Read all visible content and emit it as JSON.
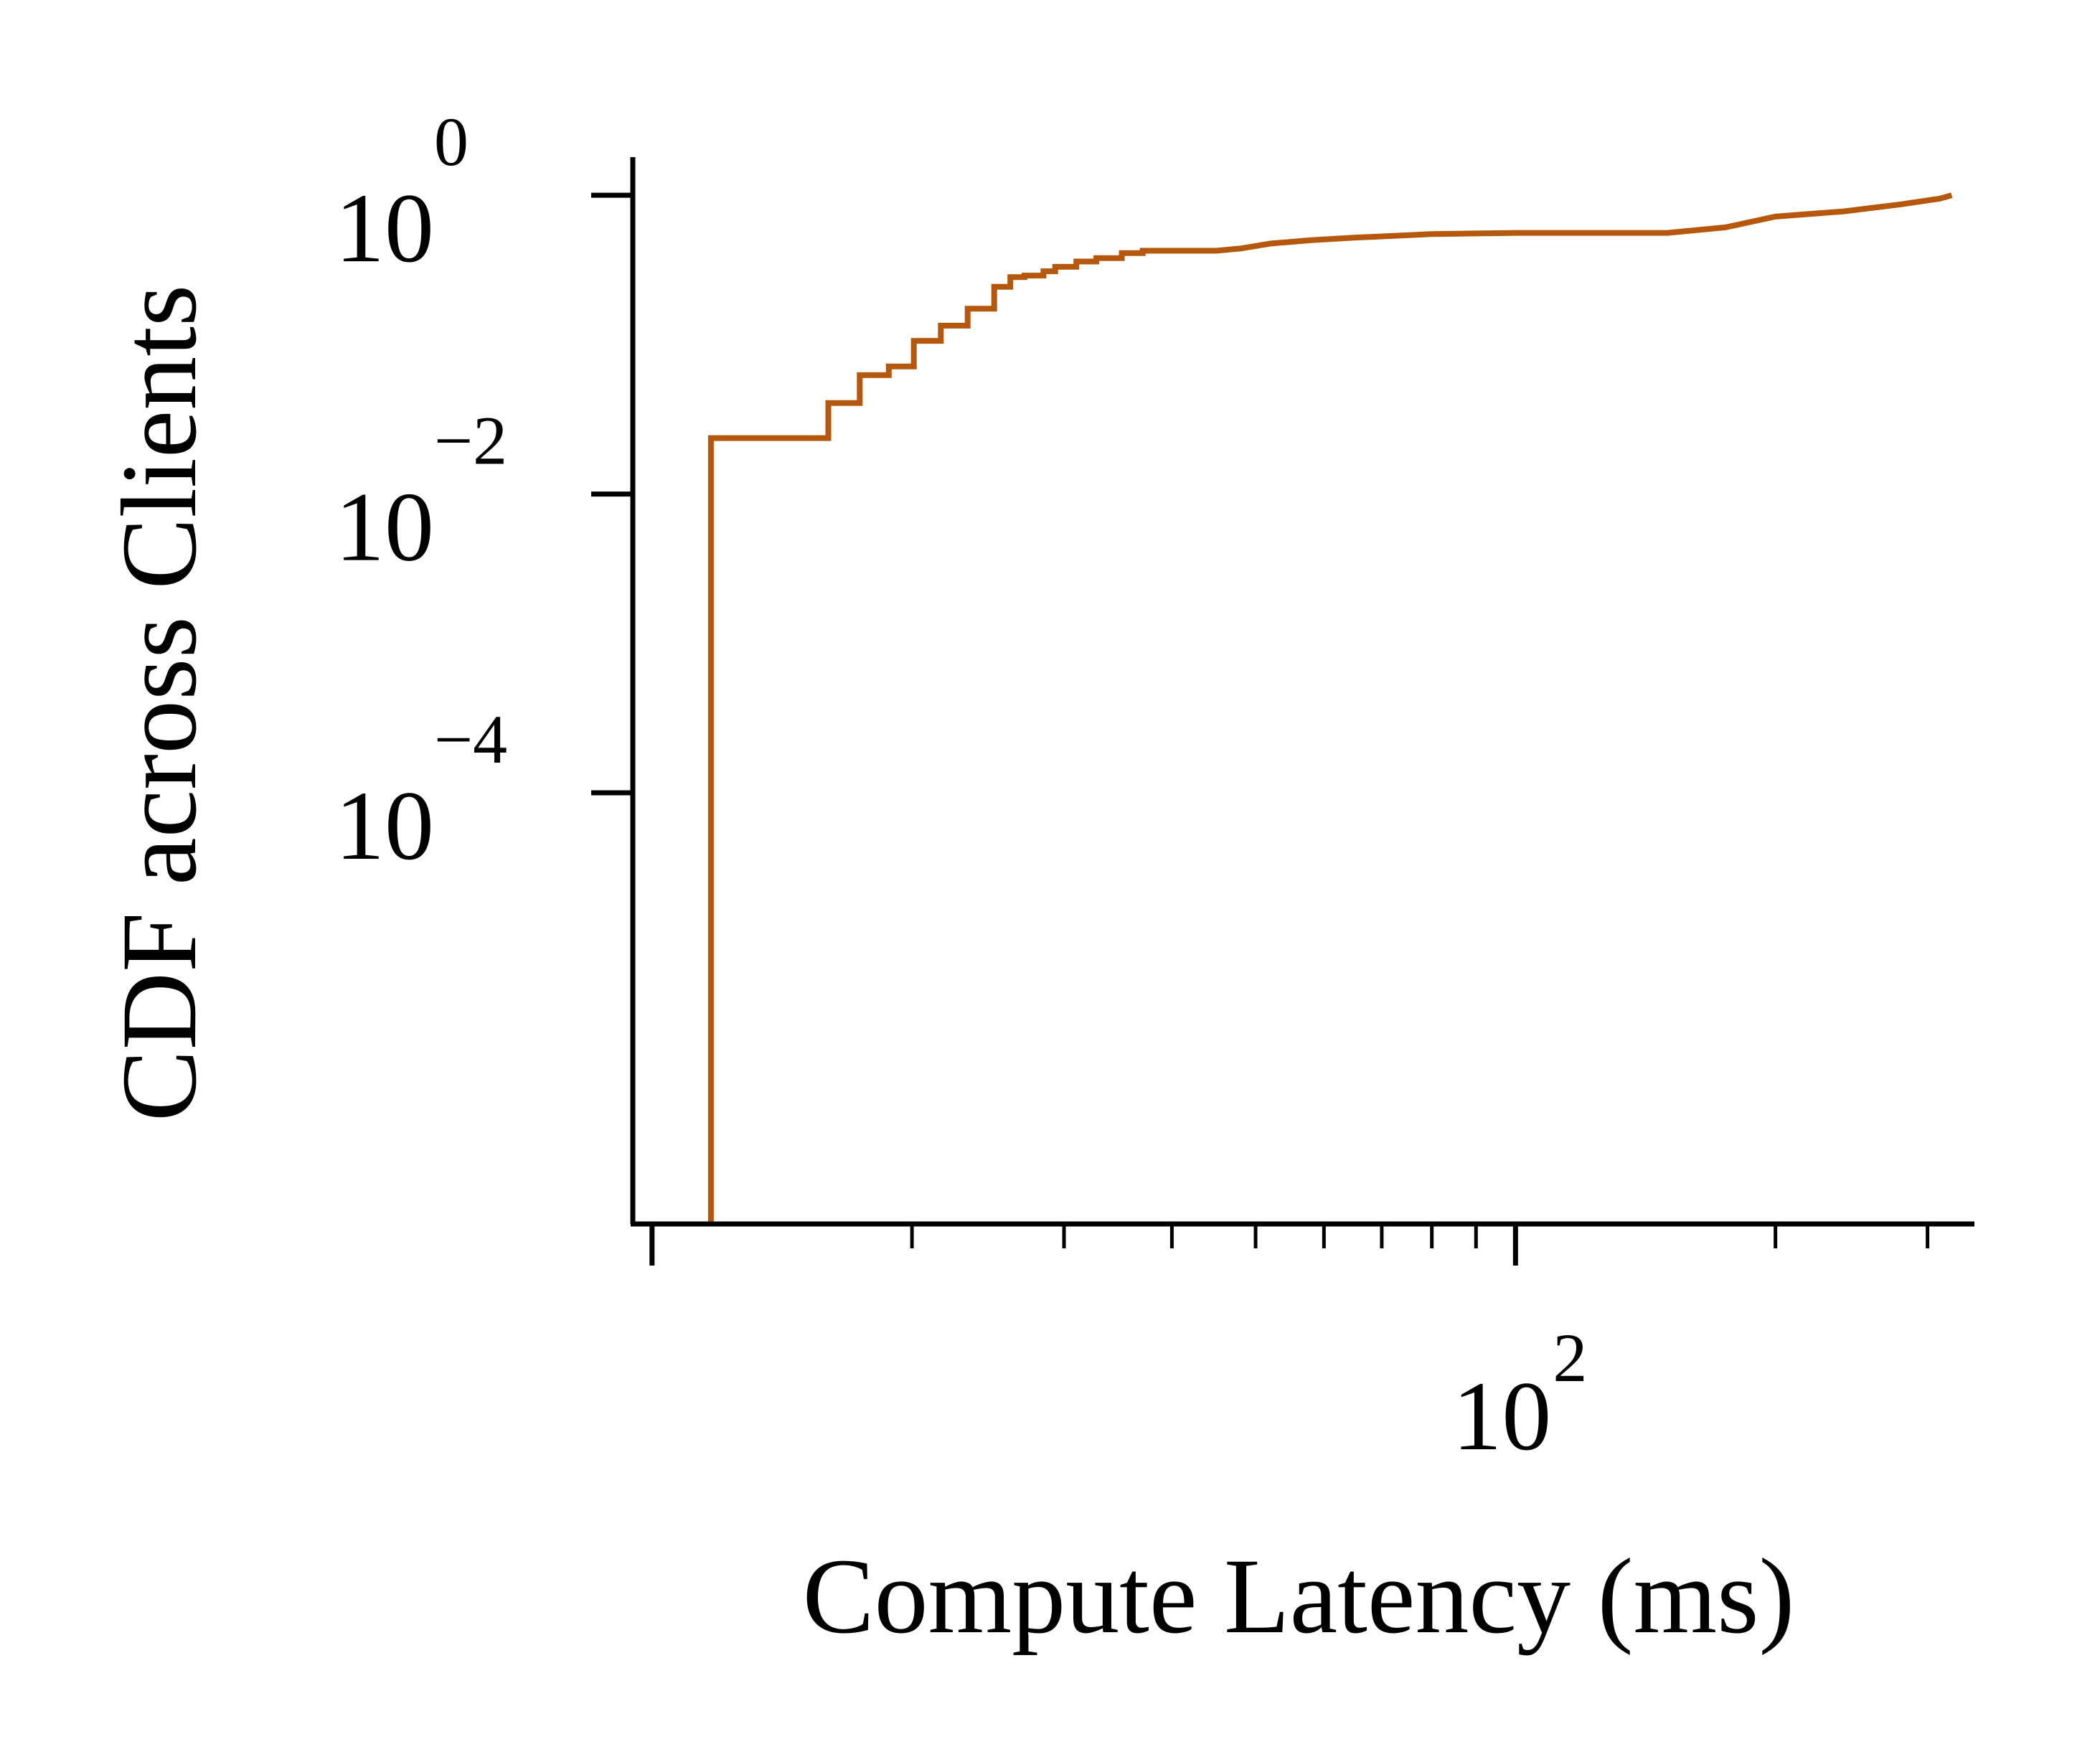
{
  "chart_data": {
    "type": "line",
    "title": "",
    "xlabel": "Compute Latency (ms)",
    "ylabel": "CDF across Clients",
    "xscale": "log",
    "yscale": "log",
    "xlim": [
      9.5,
      340
    ],
    "ylim": [
      1.3e-07,
      1.8
    ],
    "x_ticks": [
      {
        "base": "10",
        "exp": "2",
        "value": 100
      }
    ],
    "y_ticks": [
      {
        "base": "10",
        "exp": "0",
        "value": 1
      },
      {
        "base": "10",
        "exp": "−2",
        "value": 0.01
      },
      {
        "base": "10",
        "exp": "−4",
        "value": 0.0001
      }
    ],
    "grid": false,
    "legend": "none",
    "series": [
      {
        "color": "#b5580e",
        "step": true,
        "x": [
          11.7,
          11.7,
          16.0,
          16.0,
          17.4,
          17.4,
          18.8,
          18.8,
          20.1,
          20.1,
          21.6,
          21.6,
          23.2,
          23.2,
          24.9,
          24.9,
          26.0,
          26.0,
          27.0,
          27.0,
          28.4,
          28.4,
          29.3,
          29.3,
          31.0,
          31.0,
          32.7,
          32.7,
          35.0,
          35.0,
          37.0,
          37.0,
          45.0,
          48.0,
          52.0,
          58.0,
          65.0,
          80.0,
          100.0,
          150.0,
          175.0,
          200.0,
          240.0,
          280.0,
          310.0,
          320.0
        ],
        "y": [
          1.3e-07,
          0.0237,
          0.0237,
          0.0407,
          0.0407,
          0.0625,
          0.0625,
          0.0714,
          0.0714,
          0.106,
          0.106,
          0.134,
          0.134,
          0.174,
          0.174,
          0.244,
          0.244,
          0.283,
          0.283,
          0.29,
          0.29,
          0.31,
          0.31,
          0.332,
          0.332,
          0.36,
          0.36,
          0.38,
          0.38,
          0.41,
          0.41,
          0.425,
          0.425,
          0.44,
          0.475,
          0.5,
          0.52,
          0.55,
          0.56,
          0.56,
          0.61,
          0.72,
          0.78,
          0.87,
          0.95,
          1.0
        ]
      }
    ]
  }
}
